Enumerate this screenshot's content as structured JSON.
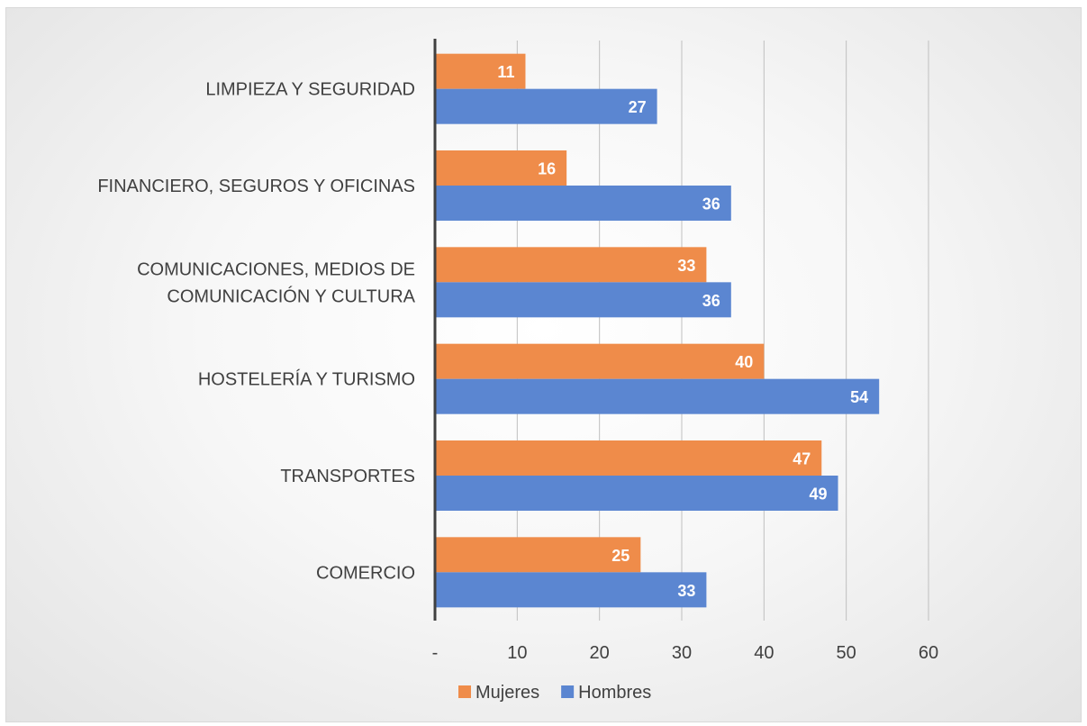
{
  "chart_data": {
    "type": "bar",
    "orientation": "horizontal",
    "categories": [
      "LIMPIEZA Y SEGURIDAD",
      "FINANCIERO, SEGUROS Y OFICINAS",
      "COMUNICACIONES, MEDIOS DE COMUNICACIÓN Y CULTURA",
      "HOSTELERÍA Y TURISMO",
      "TRANSPORTES",
      "COMERCIO"
    ],
    "category_lines": [
      [
        "LIMPIEZA Y SEGURIDAD"
      ],
      [
        "FINANCIERO, SEGUROS Y OFICINAS"
      ],
      [
        "COMUNICACIONES, MEDIOS DE",
        "COMUNICACIÓN Y CULTURA"
      ],
      [
        "HOSTELERÍA Y TURISMO"
      ],
      [
        "TRANSPORTES"
      ],
      [
        "COMERCIO"
      ]
    ],
    "series": [
      {
        "name": "Mujeres",
        "color": "#ef8c4a",
        "values": [
          11,
          16,
          33,
          40,
          47,
          25
        ],
        "labels": [
          "11",
          "16",
          "33",
          "40",
          "47",
          "25"
        ]
      },
      {
        "name": "Hombres",
        "color": "#5b86d1",
        "values": [
          27,
          36,
          36,
          54,
          49,
          33
        ],
        "labels": [
          "27",
          "36",
          "36",
          "54",
          "49",
          "33"
        ]
      }
    ],
    "xlim": [
      0,
      60
    ],
    "xticks": [
      0,
      10,
      20,
      30,
      40,
      50,
      60
    ],
    "xtick_labels": [
      "-",
      "10",
      "20",
      "30",
      "40",
      "50",
      "60"
    ],
    "grid": true,
    "legend_position": "bottom",
    "title": "",
    "xlabel": "",
    "ylabel": ""
  }
}
